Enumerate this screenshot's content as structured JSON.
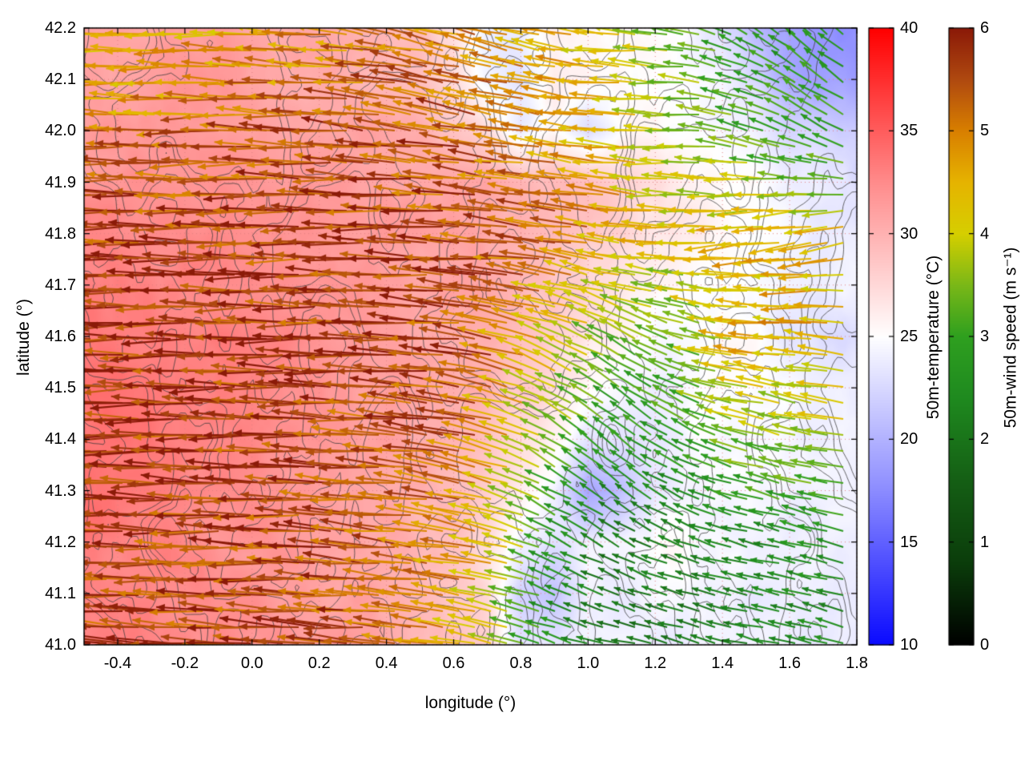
{
  "figure": {
    "background": "#ffffff",
    "border_color": "#000000",
    "grid_dot_color": "#e08080",
    "contour_color": "#3a3a3a"
  },
  "chart_data": {
    "type": "heatmap",
    "overlay": "quiver",
    "title": "",
    "xlabel": "longitude (°)",
    "ylabel": "latitude (°)",
    "xlim": [
      -0.5,
      1.8
    ],
    "ylim": [
      41.0,
      42.2
    ],
    "xticks": [
      -0.4,
      -0.2,
      0.0,
      0.2,
      0.4,
      0.6,
      0.8,
      1.0,
      1.2,
      1.4,
      1.6,
      1.8
    ],
    "yticks": [
      41.0,
      41.1,
      41.2,
      41.3,
      41.4,
      41.5,
      41.6,
      41.7,
      41.8,
      41.9,
      42.0,
      42.1,
      42.2
    ],
    "grid": true,
    "contours": {
      "color": "#3a3a3a",
      "note": "irregular gray terrain-like contour lines over the whole map"
    },
    "temperature": {
      "label": "50m-temperature (°C)",
      "range": [
        10,
        40
      ],
      "ticks": [
        10,
        15,
        20,
        25,
        30,
        35,
        40
      ],
      "colormap": [
        [
          10,
          "#0a0aff"
        ],
        [
          17.5,
          "#8c8cff"
        ],
        [
          25,
          "#ffffff"
        ],
        [
          32.5,
          "#ff8c8c"
        ],
        [
          40,
          "#ff0000"
        ]
      ],
      "lon_start": -0.5,
      "lon_step": 0.1,
      "lat_start": 41.0,
      "lat_step": 0.1,
      "values": [
        [
          33,
          33,
          33,
          32.5,
          32.5,
          32,
          32,
          31.5,
          31,
          30.5,
          30,
          29,
          28,
          23,
          23.5,
          24,
          24,
          24,
          24,
          24,
          24,
          24,
          24,
          24
        ],
        [
          33,
          33,
          33,
          32.5,
          32.5,
          32,
          31.5,
          31,
          31,
          30.5,
          30,
          29,
          27.5,
          22,
          21,
          24,
          24,
          24.5,
          24.5,
          24,
          24,
          24,
          24,
          24
        ],
        [
          33.5,
          33,
          33,
          32.5,
          32,
          32,
          31.5,
          31,
          31,
          30.5,
          30,
          29,
          27,
          24,
          23,
          24,
          24.5,
          25,
          25,
          24.5,
          24,
          24,
          24,
          24
        ],
        [
          34,
          33.5,
          33,
          33,
          32.5,
          32,
          32,
          31.5,
          31,
          30.5,
          30,
          29.5,
          28,
          26,
          24,
          19,
          21,
          23.5,
          24,
          24.5,
          24.5,
          24,
          24,
          24
        ],
        [
          34,
          33.5,
          33.5,
          33,
          33,
          32.5,
          32,
          32,
          31.5,
          31,
          30.5,
          30,
          29,
          27,
          25.5,
          23,
          23,
          24,
          24.5,
          25,
          25,
          24.5,
          24,
          24
        ],
        [
          34,
          34,
          33.5,
          33.5,
          33,
          33,
          32.5,
          32,
          31.5,
          31,
          31,
          30.5,
          30,
          28.5,
          27,
          25,
          24,
          23.5,
          25,
          25.5,
          25,
          24.5,
          24,
          24
        ],
        [
          33.5,
          33.5,
          33.5,
          33,
          33,
          33,
          32.5,
          32,
          32,
          31.5,
          31,
          30.5,
          30,
          29,
          28,
          26.5,
          25.5,
          25,
          25,
          25,
          25,
          23.5,
          22.5,
          23
        ],
        [
          33,
          33,
          33,
          33,
          32.5,
          32.5,
          32.5,
          32,
          32,
          31.5,
          31,
          31,
          30.5,
          30,
          29,
          27.5,
          26.5,
          26,
          25.5,
          25,
          25,
          24.5,
          24,
          24
        ],
        [
          32.5,
          32.5,
          32.5,
          32.5,
          32.5,
          32,
          32,
          32,
          31.5,
          31.5,
          31,
          31,
          30.5,
          30,
          29.5,
          28.5,
          27.5,
          26.5,
          26,
          25.5,
          25,
          24.5,
          24,
          24
        ],
        [
          32,
          32,
          32,
          32,
          32,
          32,
          31.5,
          31.5,
          31.5,
          31,
          31,
          30.5,
          30.5,
          30,
          29.5,
          29,
          28,
          27,
          26,
          25.5,
          25,
          24,
          23.5,
          23
        ],
        [
          31.5,
          31.5,
          31.5,
          31.5,
          31.5,
          31.5,
          31,
          31,
          31,
          30.5,
          30,
          29,
          27,
          23.5,
          26,
          22,
          25,
          25.5,
          25,
          24.5,
          24,
          22.5,
          22,
          21.5
        ],
        [
          31,
          31,
          31.5,
          31.5,
          31.5,
          31,
          31,
          30.5,
          30,
          29.5,
          29,
          27.5,
          24,
          23,
          26,
          25.5,
          25,
          25,
          24.5,
          24,
          22,
          19.5,
          19,
          18.5
        ],
        [
          31,
          31,
          31,
          31.5,
          31.5,
          31,
          30.5,
          30.5,
          30,
          29.5,
          29,
          27,
          24.5,
          24,
          26,
          26,
          25.5,
          25,
          24.5,
          23,
          20,
          18.5,
          18,
          18
        ]
      ]
    },
    "wind": {
      "label": "50m-wind speed (m s⁻¹)",
      "range": [
        0,
        6
      ],
      "ticks": [
        0,
        1,
        2,
        3,
        4,
        5,
        6
      ],
      "colormap": [
        [
          0,
          "#000000"
        ],
        [
          0.8,
          "#0b3d0b"
        ],
        [
          1.6,
          "#155f15"
        ],
        [
          2.4,
          "#1f8a1f"
        ],
        [
          3.0,
          "#2fa01f"
        ],
        [
          3.5,
          "#7ab818"
        ],
        [
          4.0,
          "#d6cf00"
        ],
        [
          4.5,
          "#e6b400"
        ],
        [
          5.0,
          "#d98000"
        ],
        [
          5.5,
          "#b04a10"
        ],
        [
          6.0,
          "#8b1a08"
        ]
      ],
      "lon_start": -0.5,
      "lon_step": 0.2,
      "lat_start": 41.0,
      "lat_step": 0.2,
      "u": [
        [
          -5.6,
          -5.6,
          -5.6,
          -5.5,
          -5.4,
          -5.2,
          -4.2,
          -2.6,
          -2.0,
          -2.0,
          -2.2,
          -2.3
        ],
        [
          -5.7,
          -5.7,
          -5.6,
          -5.6,
          -5.5,
          -5.3,
          -4.5,
          -2.5,
          -1.8,
          -2.0,
          -2.4,
          -2.5
        ],
        [
          -5.8,
          -5.8,
          -5.7,
          -5.7,
          -5.6,
          -5.5,
          -5.0,
          -3.0,
          -2.2,
          -2.6,
          -3.4,
          -3.6
        ],
        [
          -5.8,
          -5.8,
          -5.8,
          -5.7,
          -5.7,
          -5.6,
          -5.4,
          -4.2,
          -3.0,
          -3.2,
          -4.4,
          -4.6
        ],
        [
          -5.7,
          -5.7,
          -5.7,
          -5.7,
          -5.6,
          -5.6,
          -5.5,
          -5.2,
          -4.6,
          -4.2,
          -4.4,
          -4.3
        ],
        [
          -5.2,
          -5.0,
          -5.2,
          -5.3,
          -5.4,
          -5.4,
          -5.2,
          -4.8,
          -4.4,
          -3.8,
          -3.0,
          -2.6
        ],
        [
          -4.4,
          -4.2,
          -4.4,
          -4.6,
          -4.8,
          -5.0,
          -4.8,
          -4.6,
          -4.2,
          -3.4,
          -2.4,
          -2.0
        ]
      ],
      "v": [
        [
          0.3,
          0.3,
          0.3,
          0.3,
          0.4,
          0.5,
          0.8,
          0.8,
          0.5,
          0.5,
          0.5,
          0.6
        ],
        [
          0.2,
          0.2,
          0.2,
          0.3,
          0.4,
          0.6,
          1.0,
          1.2,
          1.0,
          0.8,
          0.6,
          0.6
        ],
        [
          0.0,
          0.0,
          0.1,
          0.2,
          0.3,
          0.5,
          1.2,
          1.8,
          1.8,
          1.4,
          1.0,
          0.8
        ],
        [
          0.0,
          0.0,
          0.0,
          0.0,
          0.2,
          0.4,
          0.8,
          1.5,
          1.6,
          1.2,
          0.6,
          0.5
        ],
        [
          0.0,
          0.0,
          0.0,
          0.0,
          0.0,
          0.2,
          0.4,
          0.6,
          0.6,
          0.2,
          -0.6,
          -0.8
        ],
        [
          0.2,
          0.1,
          0.0,
          0.2,
          0.5,
          0.8,
          1.0,
          0.8,
          0.4,
          0.0,
          1.0,
          1.4
        ],
        [
          0.2,
          0.2,
          0.1,
          0.3,
          0.6,
          1.0,
          1.2,
          0.8,
          0.3,
          0.5,
          1.4,
          1.8
        ]
      ]
    }
  }
}
